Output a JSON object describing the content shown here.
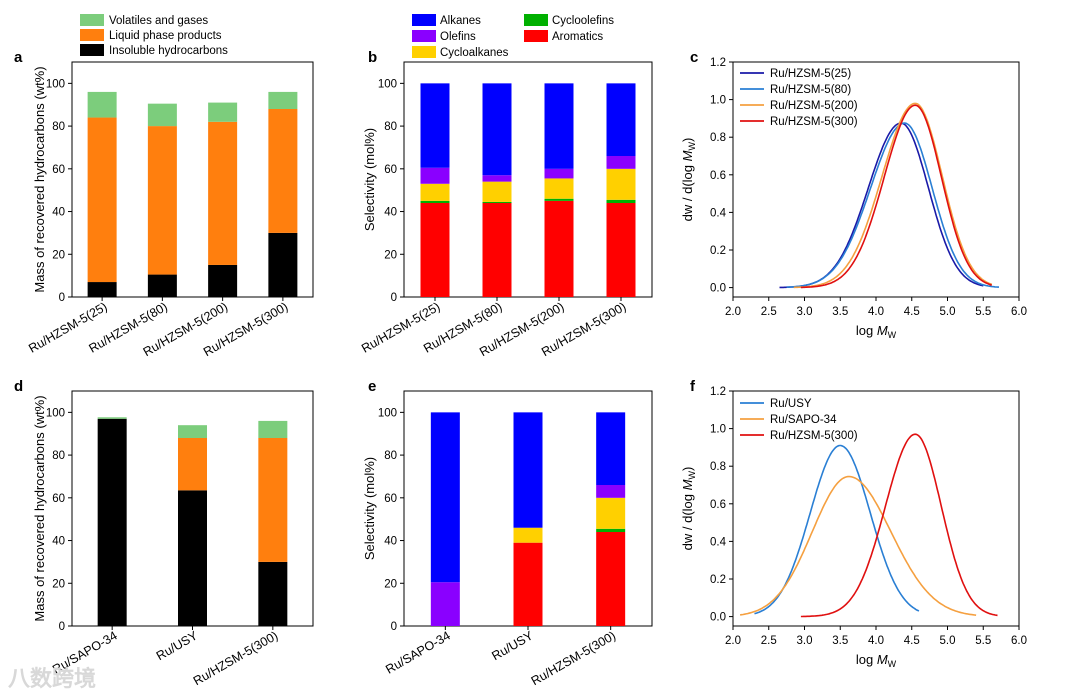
{
  "watermark": "八数跨境",
  "chart_data": [
    {
      "id": "a",
      "letter": "a",
      "type": "bar",
      "stacked": true,
      "categories": [
        "Ru/HZSM-5(25)",
        "Ru/HZSM-5(80)",
        "Ru/HZSM-5(200)",
        "Ru/HZSM-5(300)"
      ],
      "ylabel": "Mass of recovered hydrocarbons (wt%)",
      "ylim": [
        0,
        110
      ],
      "yticks": [
        0,
        20,
        40,
        60,
        80,
        100
      ],
      "legend": "top-left",
      "series": [
        {
          "name": "Insoluble hydrocarbons",
          "color": "#000000",
          "values": [
            7,
            10.5,
            15,
            30
          ]
        },
        {
          "name": "Liquid phase products",
          "color": "#ff7f0e",
          "values": [
            77,
            69.5,
            67,
            58
          ]
        },
        {
          "name": "Volatiles and gases",
          "color": "#7ccd7c",
          "values": [
            12,
            10.5,
            9,
            8
          ]
        }
      ],
      "legend_order": [
        2,
        1,
        0
      ]
    },
    {
      "id": "b",
      "letter": "b",
      "type": "bar",
      "stacked": true,
      "categories": [
        "Ru/HZSM-5(25)",
        "Ru/HZSM-5(80)",
        "Ru/HZSM-5(200)",
        "Ru/HZSM-5(300)"
      ],
      "ylabel": "Selectivity (mol%)",
      "ylim": [
        0,
        110
      ],
      "yticks": [
        0,
        20,
        40,
        60,
        80,
        100
      ],
      "legend": "top",
      "series": [
        {
          "name": "Aromatics",
          "color": "#ff0000",
          "values": [
            44,
            44,
            45,
            44
          ]
        },
        {
          "name": "Cycloolefins",
          "color": "#00b000",
          "values": [
            1,
            0.5,
            1,
            1.5
          ]
        },
        {
          "name": "Cycloalkanes",
          "color": "#ffd000",
          "values": [
            8,
            9.5,
            9.5,
            14.5
          ]
        },
        {
          "name": "Olefins",
          "color": "#8a00ff",
          "values": [
            7.5,
            3,
            4.5,
            6
          ]
        },
        {
          "name": "Alkanes",
          "color": "#0000ff",
          "values": [
            39.5,
            43,
            40,
            34
          ]
        }
      ],
      "legend_order": [
        4,
        1,
        3,
        0,
        2
      ]
    },
    {
      "id": "c",
      "letter": "c",
      "type": "line",
      "xlabel_main": "log ",
      "xlabel_italic": "M",
      "xlabel_sub": "W",
      "ylabel_main": "dw / d(log ",
      "ylabel_italic": "M",
      "ylabel_sub": "W",
      "ylabel_end": ")",
      "xlim": [
        2.0,
        6.0
      ],
      "ylim": [
        -0.05,
        1.2
      ],
      "xticks": [
        2.0,
        2.5,
        3.0,
        3.5,
        4.0,
        4.5,
        5.0,
        5.5,
        6.0
      ],
      "yticks": [
        0.0,
        0.2,
        0.4,
        0.6,
        0.8,
        1.0,
        1.2
      ],
      "legend": "top-left",
      "series": [
        {
          "name": "Ru/HZSM-5(25)",
          "color": "#1a1aa8",
          "mu": 4.35,
          "sigma": 0.42,
          "peak": 0.875,
          "range": [
            2.65,
            5.5
          ],
          "skew": -0.25
        },
        {
          "name": "Ru/HZSM-5(80)",
          "color": "#2a7fd4",
          "mu": 4.4,
          "sigma": 0.43,
          "peak": 0.875,
          "range": [
            2.75,
            5.72
          ],
          "skew": -0.3
        },
        {
          "name": "Ru/HZSM-5(200)",
          "color": "#f5a040",
          "mu": 4.55,
          "sigma": 0.42,
          "peak": 0.98,
          "range": [
            2.85,
            5.62
          ],
          "skew": -0.3
        },
        {
          "name": "Ru/HZSM-5(300)",
          "color": "#e01010",
          "mu": 4.55,
          "sigma": 0.4,
          "peak": 0.97,
          "range": [
            2.95,
            5.62
          ],
          "skew": -0.25
        }
      ]
    },
    {
      "id": "d",
      "letter": "d",
      "type": "bar",
      "stacked": true,
      "categories": [
        "Ru/SAPO-34",
        "Ru/USY",
        "Ru/HZSM-5(300)"
      ],
      "ylabel": "Mass of recovered hydrocarbons (wt%)",
      "ylim": [
        0,
        110
      ],
      "yticks": [
        0,
        20,
        40,
        60,
        80,
        100
      ],
      "series": [
        {
          "name": "Insoluble hydrocarbons",
          "color": "#000000",
          "values": [
            97,
            63.5,
            30
          ]
        },
        {
          "name": "Liquid phase products",
          "color": "#ff7f0e",
          "values": [
            0,
            24.5,
            58
          ]
        },
        {
          "name": "Volatiles and gases",
          "color": "#7ccd7c",
          "values": [
            0.7,
            6,
            8
          ]
        }
      ]
    },
    {
      "id": "e",
      "letter": "e",
      "type": "bar",
      "stacked": true,
      "categories": [
        "Ru/SAPO-34",
        "Ru/USY",
        "Ru/HZSM-5(300)"
      ],
      "ylabel": "Selectivity (mol%)",
      "ylim": [
        0,
        110
      ],
      "yticks": [
        0,
        20,
        40,
        60,
        80,
        100
      ],
      "series": [
        {
          "name": "Aromatics",
          "color": "#ff0000",
          "values": [
            0,
            39,
            44
          ]
        },
        {
          "name": "Cycloolefins",
          "color": "#00b000",
          "values": [
            0,
            0,
            1.5
          ]
        },
        {
          "name": "Cycloalkanes",
          "color": "#ffd000",
          "values": [
            0,
            7,
            14.5
          ]
        },
        {
          "name": "Olefins",
          "color": "#8a00ff",
          "values": [
            20.5,
            0,
            6
          ]
        },
        {
          "name": "Alkanes",
          "color": "#0000ff",
          "values": [
            79.5,
            54,
            34
          ]
        }
      ]
    },
    {
      "id": "f",
      "letter": "f",
      "type": "line",
      "xlabel_main": "log ",
      "xlabel_italic": "M",
      "xlabel_sub": "W",
      "ylabel_main": "dw / d(log ",
      "ylabel_italic": "M",
      "ylabel_sub": "W",
      "ylabel_end": ")",
      "xlim": [
        2.0,
        6.0
      ],
      "ylim": [
        -0.05,
        1.2
      ],
      "xticks": [
        2.0,
        2.5,
        3.0,
        3.5,
        4.0,
        4.5,
        5.0,
        5.5,
        6.0
      ],
      "yticks": [
        0.0,
        0.2,
        0.4,
        0.6,
        0.8,
        1.0,
        1.2
      ],
      "legend": "top-left",
      "series": [
        {
          "name": "Ru/USY",
          "color": "#2a7fd4",
          "mu": 3.5,
          "sigma": 0.42,
          "peak": 0.91,
          "range": [
            2.3,
            4.6
          ],
          "skew": 0
        },
        {
          "name": "Ru/SAPO-34",
          "color": "#f5a040",
          "mu": 3.62,
          "sigma": 0.55,
          "peak": 0.745,
          "range": [
            2.1,
            5.4
          ],
          "skew": 0.2
        },
        {
          "name": "Ru/HZSM-5(300)",
          "color": "#e01010",
          "mu": 4.55,
          "sigma": 0.39,
          "peak": 0.97,
          "range": [
            2.95,
            5.7
          ],
          "skew": -0.2
        }
      ]
    }
  ]
}
